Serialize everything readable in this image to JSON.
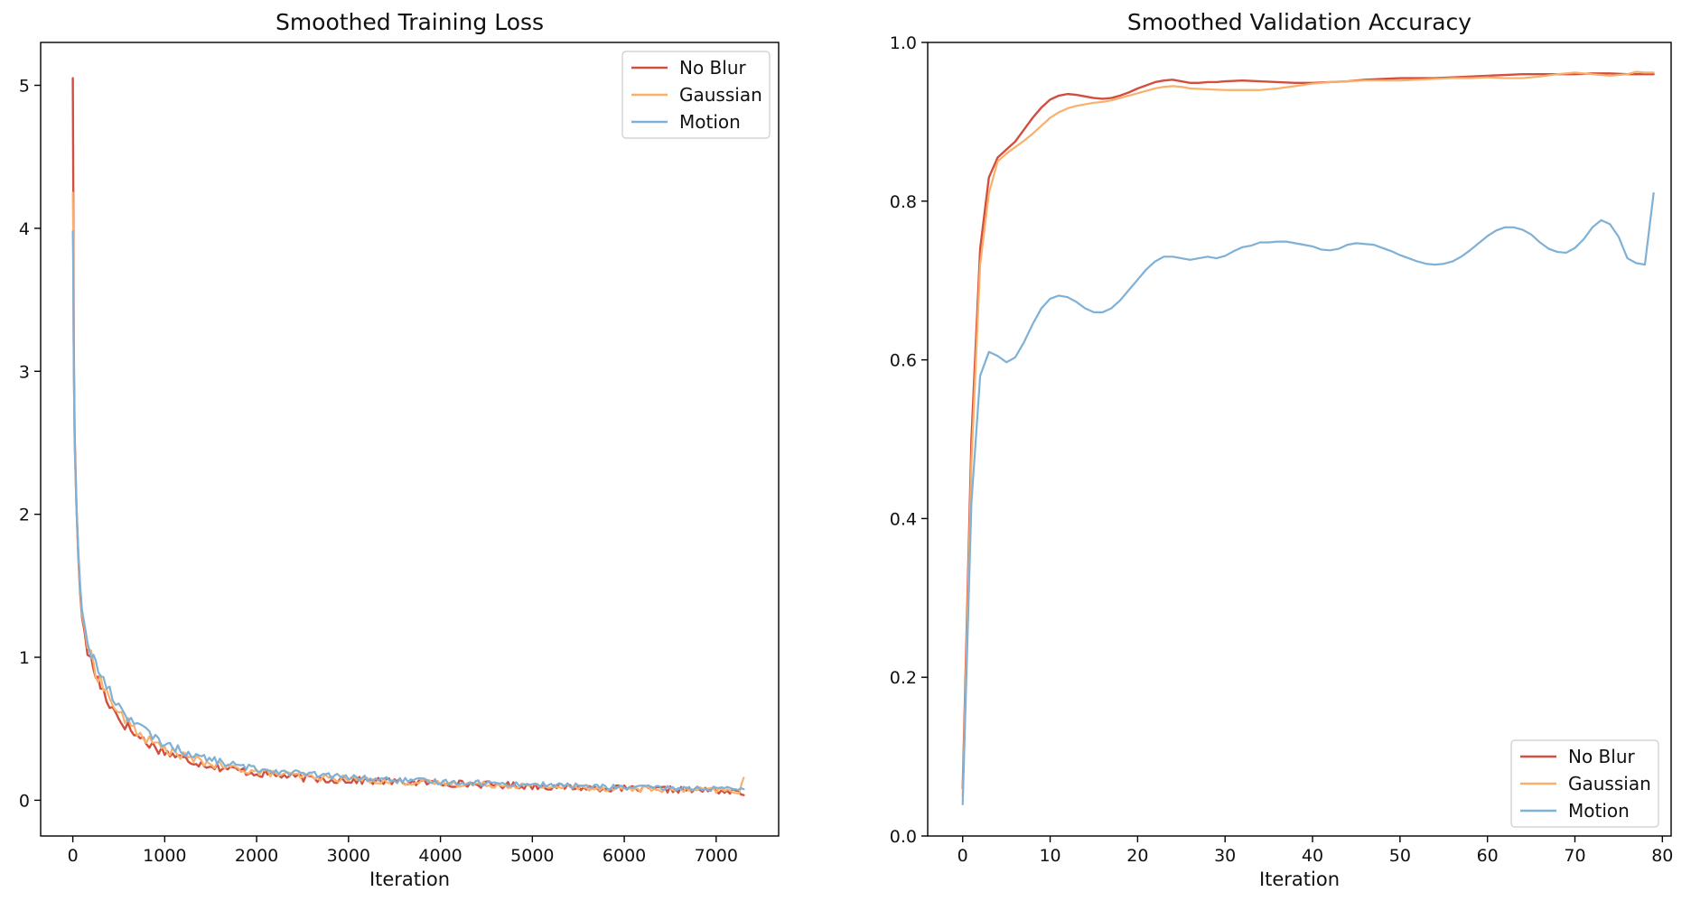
{
  "colors": {
    "no_blur": "#d24e3f",
    "gaussian": "#f9b06a",
    "motion": "#7fb0d6"
  },
  "chart_data": [
    {
      "type": "line",
      "title": "Smoothed Training Loss",
      "xlabel": "Iteration",
      "ylabel": "",
      "xlim": [
        -350,
        7680
      ],
      "ylim": [
        -0.25,
        5.3
      ],
      "xticks": [
        0,
        1000,
        2000,
        3000,
        4000,
        5000,
        6000,
        7000
      ],
      "yticks": [
        0,
        1,
        2,
        3,
        4,
        5
      ],
      "grid": false,
      "legend": "top-right",
      "series": [
        {
          "name": "No Blur",
          "color_key": "no_blur",
          "noise_amp": 0.028,
          "x": [
            0,
            5,
            10,
            20,
            40,
            60,
            80,
            100,
            130,
            160,
            200,
            250,
            300,
            400,
            500,
            600,
            700,
            800,
            900,
            1000,
            1200,
            1400,
            1600,
            1800,
            2000,
            2300,
            2600,
            3000,
            3500,
            4000,
            4500,
            5000,
            5500,
            6000,
            6500,
            7000,
            7300
          ],
          "y": [
            5.05,
            4.3,
            3.2,
            2.55,
            2.05,
            1.7,
            1.45,
            1.28,
            1.17,
            1.05,
            0.96,
            0.88,
            0.8,
            0.68,
            0.58,
            0.51,
            0.45,
            0.41,
            0.37,
            0.34,
            0.29,
            0.26,
            0.23,
            0.21,
            0.19,
            0.17,
            0.15,
            0.14,
            0.13,
            0.12,
            0.11,
            0.1,
            0.09,
            0.08,
            0.075,
            0.07,
            0.05
          ]
        },
        {
          "name": "Gaussian",
          "color_key": "gaussian",
          "noise_amp": 0.025,
          "x": [
            0,
            5,
            10,
            20,
            40,
            60,
            80,
            100,
            130,
            160,
            200,
            250,
            300,
            400,
            500,
            600,
            700,
            800,
            900,
            1000,
            1200,
            1400,
            1600,
            1800,
            2000,
            2300,
            2600,
            3000,
            3500,
            4000,
            4500,
            5000,
            5500,
            6000,
            6500,
            7000,
            7250,
            7300
          ],
          "y": [
            4.25,
            3.9,
            3.1,
            2.5,
            2.05,
            1.72,
            1.48,
            1.3,
            1.2,
            1.09,
            0.99,
            0.91,
            0.84,
            0.71,
            0.61,
            0.54,
            0.48,
            0.43,
            0.39,
            0.36,
            0.31,
            0.27,
            0.24,
            0.22,
            0.2,
            0.18,
            0.16,
            0.15,
            0.13,
            0.12,
            0.11,
            0.1,
            0.09,
            0.08,
            0.075,
            0.07,
            0.06,
            0.16
          ]
        },
        {
          "name": "Motion",
          "color_key": "motion",
          "noise_amp": 0.022,
          "x": [
            0,
            5,
            10,
            20,
            40,
            60,
            80,
            100,
            130,
            160,
            200,
            250,
            300,
            400,
            500,
            600,
            700,
            800,
            900,
            1000,
            1200,
            1400,
            1600,
            1800,
            2000,
            2300,
            2600,
            3000,
            3500,
            4000,
            4500,
            5000,
            5500,
            6000,
            6500,
            7000,
            7300
          ],
          "y": [
            3.98,
            3.7,
            3.05,
            2.5,
            2.05,
            1.74,
            1.5,
            1.33,
            1.22,
            1.12,
            1.03,
            0.95,
            0.88,
            0.76,
            0.66,
            0.59,
            0.53,
            0.48,
            0.43,
            0.4,
            0.34,
            0.3,
            0.27,
            0.24,
            0.22,
            0.2,
            0.18,
            0.16,
            0.14,
            0.13,
            0.12,
            0.11,
            0.1,
            0.09,
            0.085,
            0.08,
            0.07
          ]
        }
      ]
    },
    {
      "type": "line",
      "title": "Smoothed Validation Accuracy",
      "xlabel": "Iteration",
      "ylabel": "",
      "xlim": [
        -4,
        81
      ],
      "ylim": [
        0.0,
        1.0
      ],
      "xticks": [
        0,
        10,
        20,
        30,
        40,
        50,
        60,
        70,
        80
      ],
      "yticks": [
        0.0,
        0.2,
        0.4,
        0.6,
        0.8,
        1.0
      ],
      "grid": false,
      "legend": "bottom-right",
      "series": [
        {
          "name": "No Blur",
          "color_key": "no_blur",
          "x": [
            0,
            1,
            2,
            3,
            4,
            5,
            6,
            7,
            8,
            9,
            10,
            11,
            12,
            13,
            14,
            15,
            16,
            17,
            18,
            19,
            20,
            21,
            22,
            23,
            24,
            25,
            26,
            27,
            28,
            29,
            30,
            32,
            34,
            36,
            38,
            40,
            42,
            44,
            46,
            48,
            50,
            52,
            54,
            56,
            58,
            60,
            62,
            64,
            66,
            68,
            70,
            72,
            74,
            76,
            78,
            79
          ],
          "y": [
            0.06,
            0.5,
            0.74,
            0.83,
            0.855,
            0.865,
            0.875,
            0.89,
            0.905,
            0.918,
            0.928,
            0.933,
            0.935,
            0.934,
            0.932,
            0.93,
            0.929,
            0.93,
            0.933,
            0.937,
            0.942,
            0.946,
            0.95,
            0.952,
            0.953,
            0.951,
            0.949,
            0.949,
            0.95,
            0.95,
            0.951,
            0.952,
            0.951,
            0.95,
            0.949,
            0.949,
            0.95,
            0.951,
            0.953,
            0.954,
            0.955,
            0.955,
            0.955,
            0.956,
            0.957,
            0.958,
            0.959,
            0.96,
            0.96,
            0.96,
            0.96,
            0.961,
            0.961,
            0.96,
            0.96,
            0.96
          ]
        },
        {
          "name": "Gaussian",
          "color_key": "gaussian",
          "x": [
            0,
            1,
            2,
            3,
            4,
            5,
            6,
            7,
            8,
            9,
            10,
            11,
            12,
            13,
            14,
            15,
            16,
            17,
            18,
            19,
            20,
            21,
            22,
            23,
            24,
            25,
            26,
            28,
            30,
            32,
            34,
            36,
            38,
            40,
            42,
            44,
            46,
            48,
            50,
            52,
            54,
            56,
            58,
            60,
            62,
            64,
            66,
            68,
            70,
            72,
            74,
            76,
            77,
            78,
            79
          ],
          "y": [
            0.05,
            0.47,
            0.72,
            0.81,
            0.85,
            0.86,
            0.868,
            0.876,
            0.885,
            0.895,
            0.905,
            0.912,
            0.917,
            0.92,
            0.922,
            0.924,
            0.925,
            0.927,
            0.93,
            0.933,
            0.936,
            0.939,
            0.942,
            0.944,
            0.945,
            0.944,
            0.942,
            0.941,
            0.94,
            0.94,
            0.94,
            0.942,
            0.945,
            0.948,
            0.95,
            0.951,
            0.952,
            0.952,
            0.952,
            0.953,
            0.954,
            0.955,
            0.955,
            0.956,
            0.955,
            0.955,
            0.957,
            0.96,
            0.962,
            0.96,
            0.958,
            0.96,
            0.963,
            0.962,
            0.962
          ]
        },
        {
          "name": "Motion",
          "color_key": "motion",
          "x": [
            0,
            1,
            2,
            3,
            4,
            5,
            6,
            7,
            8,
            9,
            10,
            11,
            12,
            13,
            14,
            15,
            16,
            17,
            18,
            19,
            20,
            21,
            22,
            23,
            24,
            25,
            26,
            27,
            28,
            29,
            30,
            31,
            32,
            33,
            34,
            35,
            36,
            37,
            38,
            39,
            40,
            41,
            42,
            43,
            44,
            45,
            46,
            47,
            48,
            49,
            50,
            51,
            52,
            53,
            54,
            55,
            56,
            57,
            58,
            59,
            60,
            61,
            62,
            63,
            64,
            65,
            66,
            67,
            68,
            69,
            70,
            71,
            72,
            73,
            74,
            75,
            76,
            77,
            78,
            79
          ],
          "y": [
            0.04,
            0.42,
            0.58,
            0.61,
            0.605,
            0.597,
            0.603,
            0.622,
            0.645,
            0.665,
            0.677,
            0.681,
            0.679,
            0.673,
            0.665,
            0.66,
            0.66,
            0.665,
            0.675,
            0.688,
            0.701,
            0.714,
            0.724,
            0.73,
            0.73,
            0.728,
            0.726,
            0.728,
            0.73,
            0.728,
            0.731,
            0.737,
            0.742,
            0.744,
            0.748,
            0.748,
            0.749,
            0.749,
            0.747,
            0.745,
            0.743,
            0.739,
            0.738,
            0.74,
            0.745,
            0.747,
            0.746,
            0.745,
            0.741,
            0.737,
            0.732,
            0.728,
            0.724,
            0.721,
            0.72,
            0.721,
            0.724,
            0.73,
            0.738,
            0.747,
            0.756,
            0.763,
            0.767,
            0.767,
            0.764,
            0.758,
            0.748,
            0.74,
            0.736,
            0.735,
            0.741,
            0.752,
            0.767,
            0.776,
            0.771,
            0.755,
            0.728,
            0.722,
            0.72,
            0.81
          ]
        }
      ]
    }
  ]
}
